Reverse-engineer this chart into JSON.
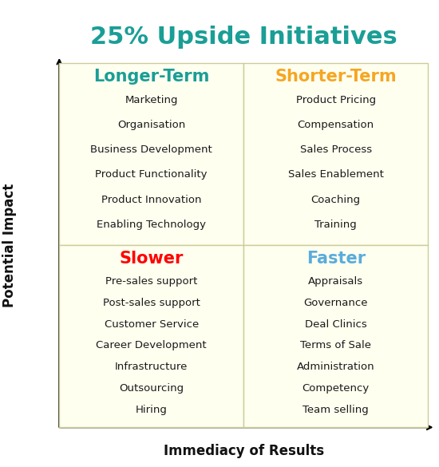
{
  "title": "25% Upside Initiatives",
  "title_color": "#1a9e96",
  "title_fontsize": 22,
  "xlabel": "Immediacy of Results",
  "ylabel": "Potential Impact",
  "axis_label_fontsize": 12,
  "bg_color": "#ffffff",
  "quad_bg_color": "#fffff0",
  "quad_border_color": "#cccc99",
  "quadrants": [
    {
      "label": "Longer-Term",
      "label_color": "#1a9e96",
      "items": [
        "Marketing",
        "Organisation",
        "Business Development",
        "Product Functionality",
        "Product Innovation",
        "Enabling Technology"
      ],
      "col": 0,
      "row": 1
    },
    {
      "label": "Shorter-Term",
      "label_color": "#f5a623",
      "items": [
        "Product Pricing",
        "Compensation",
        "Sales Process",
        "Sales Enablement",
        "Coaching",
        "Training"
      ],
      "col": 1,
      "row": 1
    },
    {
      "label": "Slower",
      "label_color": "#ff0000",
      "items": [
        "Pre-sales support",
        "Post-sales support",
        "Customer Service",
        "Career Development",
        "Infrastructure",
        "Outsourcing",
        "Hiring"
      ],
      "col": 0,
      "row": 0
    },
    {
      "label": "Faster",
      "label_color": "#5aacdc",
      "items": [
        "Appraisals",
        "Governance",
        "Deal Clinics",
        "Terms of Sale",
        "Administration",
        "Competency",
        "Team selling"
      ],
      "col": 1,
      "row": 0
    }
  ],
  "item_fontsize": 9.5,
  "label_fontsize": 15
}
